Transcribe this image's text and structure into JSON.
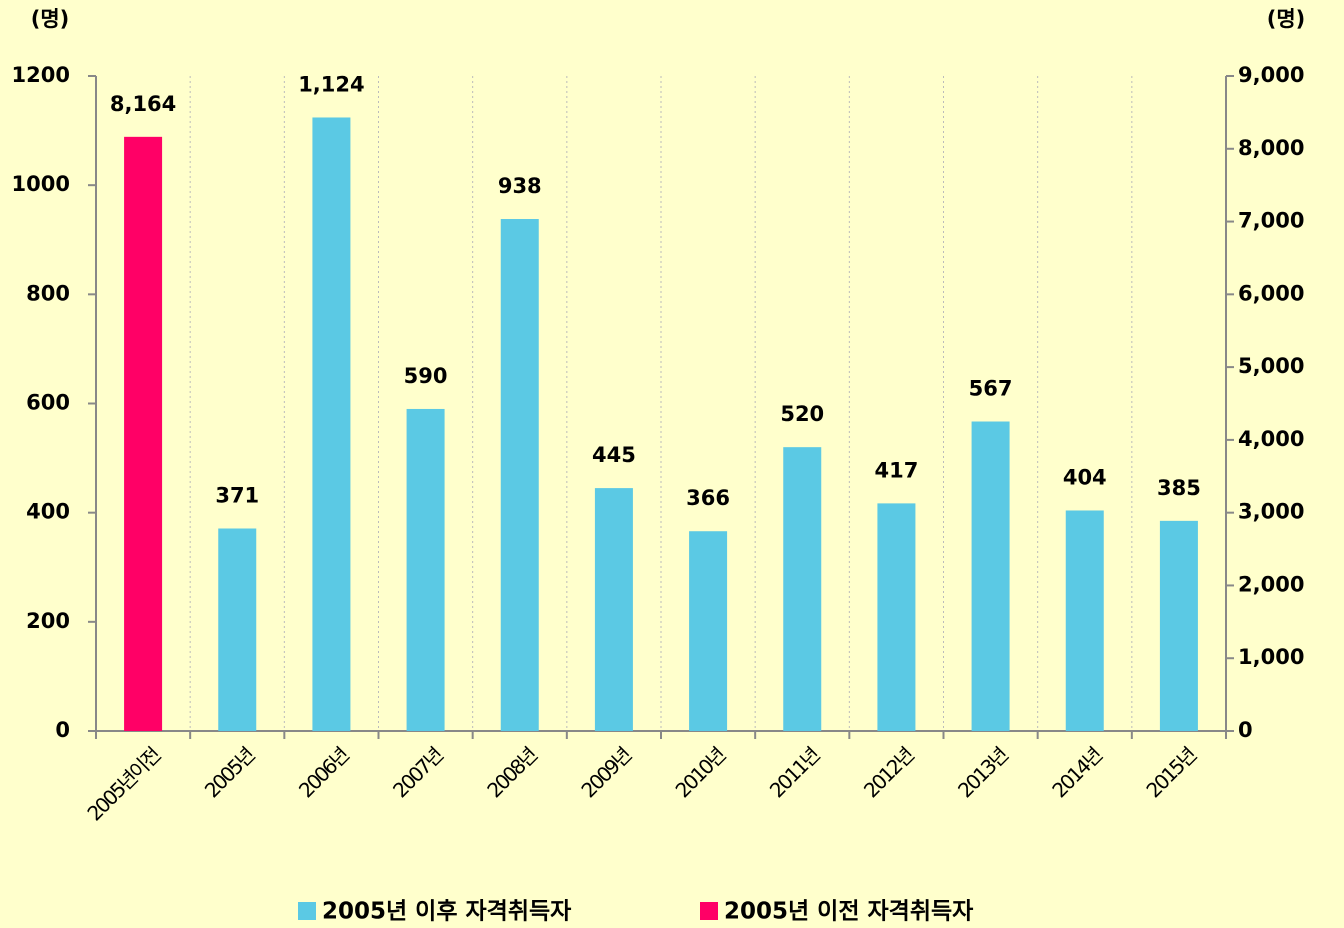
{
  "chart_data": {
    "type": "bar",
    "y_label": "(명)",
    "y2_label": "(명)",
    "categories": [
      "2005년이전",
      "2005년",
      "2006년",
      "2007년",
      "2008년",
      "2009년",
      "2010년",
      "2011년",
      "2012년",
      "2013년",
      "2014년",
      "2015년"
    ],
    "series": [
      {
        "name": "2005년 이후 자격취득자",
        "color": "#5bc9e4",
        "axis": "y",
        "values": [
          null,
          371,
          1124,
          590,
          938,
          445,
          366,
          520,
          417,
          567,
          404,
          385
        ],
        "value_labels": [
          null,
          "371",
          "1,124",
          "590",
          "938",
          "445",
          "366",
          "520",
          "417",
          "567",
          "404",
          "385"
        ]
      },
      {
        "name": "2005년 이전 자격취득자",
        "color": "#ff0066",
        "axis": "y2",
        "values": [
          8164,
          null,
          null,
          null,
          null,
          null,
          null,
          null,
          null,
          null,
          null,
          null
        ],
        "value_labels": [
          "8,164",
          null,
          null,
          null,
          null,
          null,
          null,
          null,
          null,
          null,
          null,
          null
        ]
      }
    ],
    "ylim": [
      0,
      1200
    ],
    "yticks": [
      0,
      200,
      400,
      600,
      800,
      1000,
      1200
    ],
    "y2lim": [
      0,
      9000
    ],
    "y2ticks": [
      0,
      {
        "value": 1000,
        "label": "1,000"
      },
      {
        "value": 2000,
        "label": "2,000"
      },
      {
        "value": 3000,
        "label": "3,000"
      },
      {
        "value": 4000,
        "label": "4,000"
      },
      {
        "value": 5000,
        "label": "5,000"
      },
      {
        "value": 6000,
        "label": "6,000"
      },
      {
        "value": 7000,
        "label": "7,000"
      },
      {
        "value": 8000,
        "label": "8,000"
      },
      {
        "value": 9000,
        "label": "9,000"
      }
    ]
  }
}
